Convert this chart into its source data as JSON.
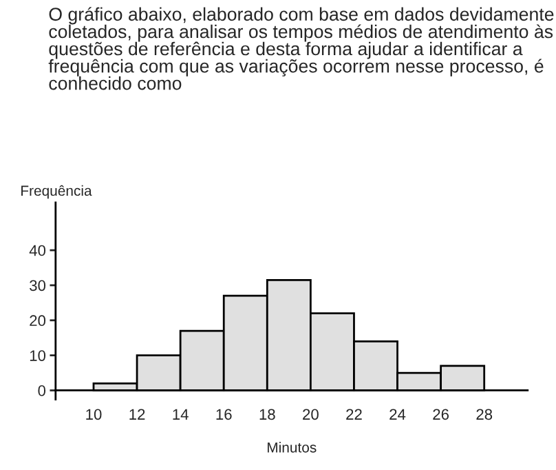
{
  "chart_data": {
    "type": "histogram",
    "title": "O gráfico abaixo, elaborado com base em dados devidamente coletados, para analisar os tempos médios de atendimento às questões de referência e desta forma ajudar a identificar a frequência com que as variações ocorrem nesse processo, é conhecido como",
    "xlabel": "Minutos",
    "ylabel": "Frequência",
    "bins": [
      10,
      12,
      14,
      16,
      18,
      20,
      22,
      24,
      26,
      28
    ],
    "values": [
      2,
      10,
      17,
      27,
      31.5,
      22,
      14,
      5,
      7
    ],
    "color": "#e0e0e0",
    "xlim": [
      8.25,
      30
    ],
    "ylim": [
      -2.6,
      53.6
    ],
    "xticks": [
      10,
      12,
      14,
      16,
      18,
      20,
      22,
      24,
      26,
      28
    ],
    "yticks": [
      0,
      10,
      20,
      30,
      40
    ],
    "grid": false
  }
}
